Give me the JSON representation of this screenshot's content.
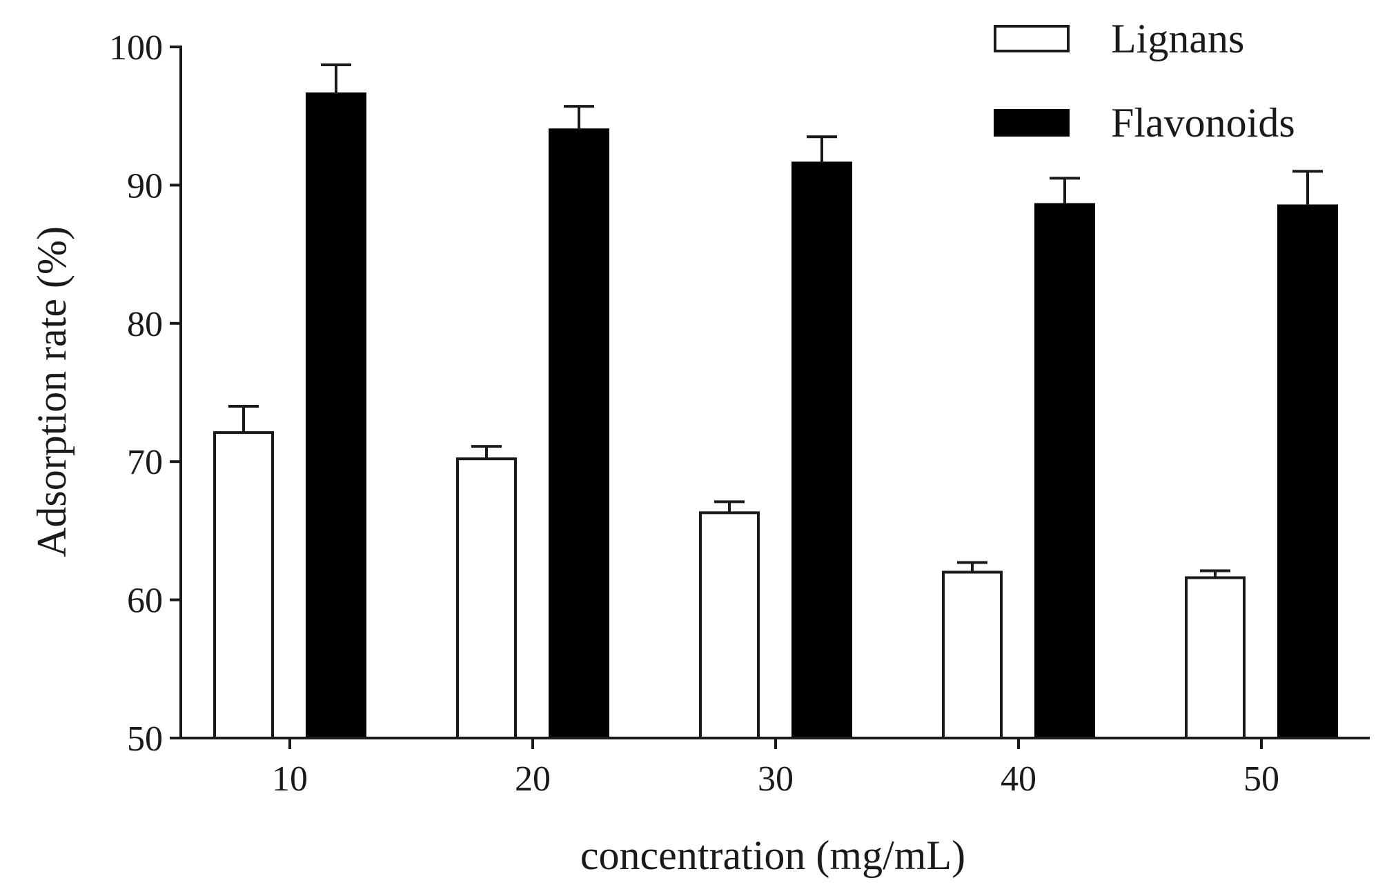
{
  "chart_data": {
    "type": "bar",
    "title": "",
    "xlabel": "concentration (mg/mL)",
    "ylabel": "Adsorption rate (%)",
    "categories": [
      "10",
      "20",
      "30",
      "40",
      "50"
    ],
    "ylim": [
      50,
      100
    ],
    "yticks": [
      "50",
      "60",
      "70",
      "80",
      "90",
      "100"
    ],
    "grid": false,
    "legend_position": "top-right",
    "series": [
      {
        "name": "Lignans",
        "fill": "#ffffff",
        "stroke": "#1a1a1a",
        "values": [
          72.1,
          70.2,
          66.3,
          62.0,
          61.6
        ],
        "errors": [
          1.9,
          0.9,
          0.8,
          0.7,
          0.5
        ]
      },
      {
        "name": "Flavonoids",
        "fill": "#000000",
        "stroke": "#000000",
        "values": [
          96.6,
          94.0,
          91.6,
          88.6,
          88.5
        ],
        "errors": [
          2.1,
          1.7,
          1.9,
          1.9,
          2.5
        ]
      }
    ]
  }
}
